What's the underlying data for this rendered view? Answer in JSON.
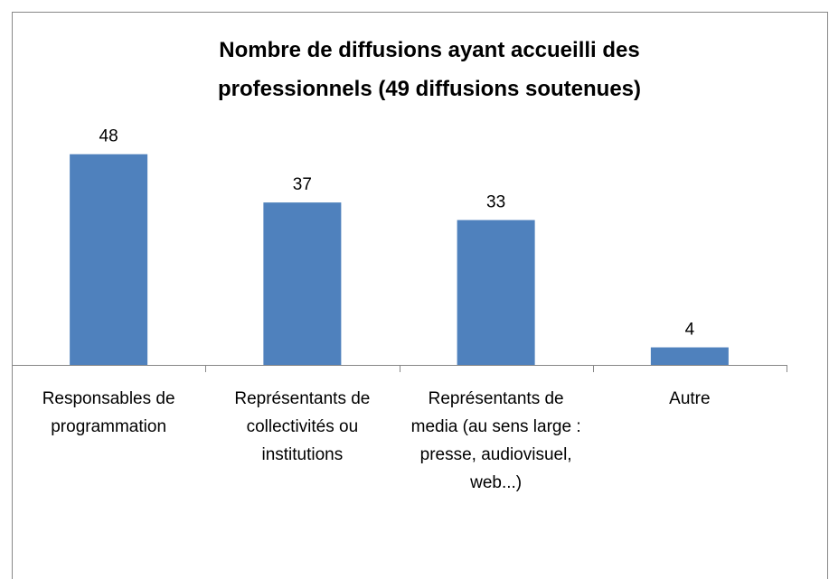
{
  "chart_data": {
    "type": "bar",
    "title": "Nombre de diffusions ayant accueilli des professionnels (49 diffusions soutenues)",
    "categories": [
      "Responsables de programmation",
      "Représentants de collectivités ou institutions",
      "Représentants de media (au sens large : presse, audiovisuel, web...)",
      "Autre"
    ],
    "values": [
      48,
      37,
      33,
      4
    ],
    "color": "#4f81bd",
    "ylim": [
      0,
      50
    ]
  }
}
